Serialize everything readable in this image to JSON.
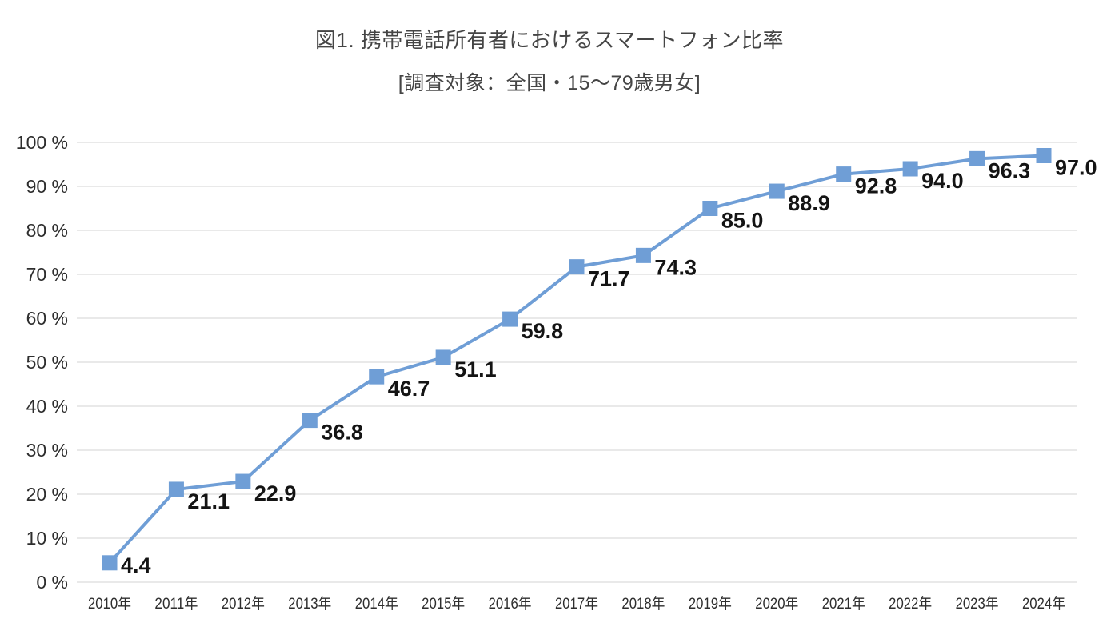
{
  "page": {
    "title": "図1. 携帯電話所有者におけるスマートフォン比率",
    "subtitle": "[調査対象：全国・15〜79歳男女]"
  },
  "chart_data": {
    "type": "line",
    "title": "図1. 携帯電話所有者におけるスマートフォン比率",
    "subtitle": "[調査対象：全国・15〜79歳男女]",
    "categories": [
      "2010年",
      "2011年",
      "2012年",
      "2013年",
      "2014年",
      "2015年",
      "2016年",
      "2017年",
      "2018年",
      "2019年",
      "2020年",
      "2021年",
      "2022年",
      "2023年",
      "2024年"
    ],
    "values": [
      4.4,
      21.1,
      22.9,
      36.8,
      46.7,
      51.1,
      59.8,
      71.7,
      74.3,
      85.0,
      88.9,
      92.8,
      94.0,
      96.3,
      97.0
    ],
    "data_labels": [
      "4.4",
      "21.1",
      "22.9",
      "36.8",
      "46.7",
      "51.1",
      "59.8",
      "71.7",
      "74.3",
      "85.0",
      "88.9",
      "92.8",
      "94.0",
      "96.3",
      "97.0"
    ],
    "xlabel": "",
    "ylabel": "",
    "ylim": [
      0,
      100
    ],
    "ytick_step": 10,
    "ytick_labels": [
      "0 %",
      "10 %",
      "20 %",
      "30 %",
      "40 %",
      "50 %",
      "60 %",
      "70 %",
      "80 %",
      "90 %",
      "100 %"
    ],
    "grid": true,
    "legend": false,
    "marker": "square",
    "colors": {
      "line": "#6f9ed6",
      "marker": "#6f9ed6",
      "grid": "#dcdcdc",
      "axis_label": "#2e2e2e",
      "data_label": "#141414",
      "title": "#454545"
    }
  }
}
